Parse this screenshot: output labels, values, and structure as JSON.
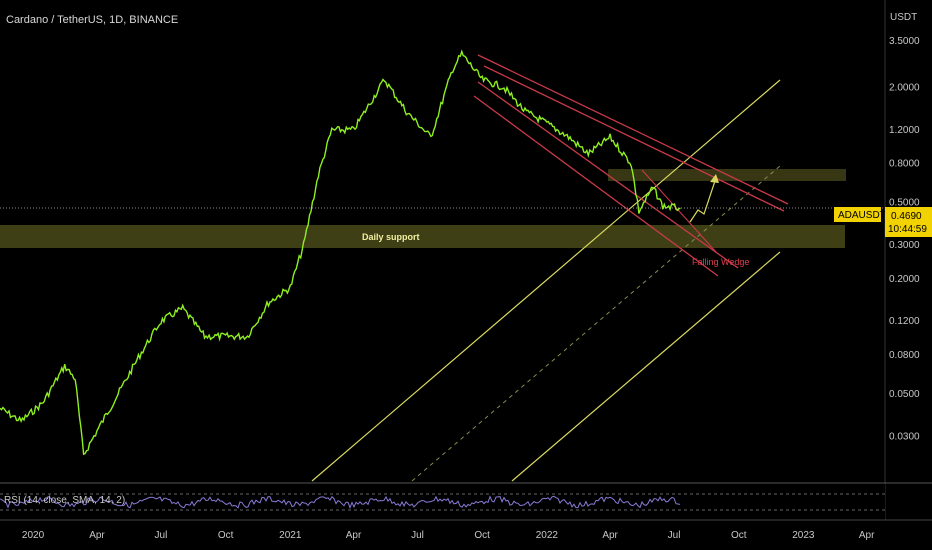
{
  "header": {
    "title": "Cardano / TetherUS, 1D, BINANCE"
  },
  "axis": {
    "unit": "USDT"
  },
  "price_tag": {
    "symbol": "ADAUSDT",
    "price": "0.4690",
    "countdown": "10:44:59"
  },
  "annotations": {
    "support": "Daily support",
    "wedge": "Falling Wedge"
  },
  "rsi": {
    "label": "RSI (14, close, SMA, 14, 2)"
  },
  "colors": {
    "candles": "#8ff020",
    "support_zone": "#4a4a1a",
    "trend_channel": "#d8d860",
    "wedge": "#c83a48",
    "rsi_line": "#8a7bd8",
    "price_tag": "#f2d200"
  },
  "chart_data": {
    "type": "line",
    "y_scale": "log",
    "ylim": [
      0.02,
      4.0
    ],
    "y_ticks": [
      "3.5000",
      "2.0000",
      "1.2000",
      "0.8000",
      "0.5000",
      "0.3000",
      "0.2000",
      "0.1200",
      "0.0800",
      "0.0500",
      "0.0300"
    ],
    "x_ticks": [
      "2020",
      "Apr",
      "Jul",
      "Oct",
      "2021",
      "Apr",
      "Jul",
      "Oct",
      "2022",
      "Apr",
      "Jul",
      "Oct",
      "2023",
      "Apr"
    ],
    "xlim": [
      "2019-11-15",
      "2023-04-20"
    ],
    "last_price": 0.469,
    "series": [
      {
        "values": [
          [
            "2019-11-15",
            0.042
          ],
          [
            "2019-12-15",
            0.036
          ],
          [
            "2020-01-15",
            0.045
          ],
          [
            "2020-02-15",
            0.07
          ],
          [
            "2020-03-01",
            0.06
          ],
          [
            "2020-03-13",
            0.024
          ],
          [
            "2020-04-01",
            0.032
          ],
          [
            "2020-05-01",
            0.05
          ],
          [
            "2020-06-01",
            0.08
          ],
          [
            "2020-07-01",
            0.12
          ],
          [
            "2020-08-01",
            0.14
          ],
          [
            "2020-09-01",
            0.1
          ],
          [
            "2020-10-01",
            0.1
          ],
          [
            "2020-11-01",
            0.1
          ],
          [
            "2020-12-01",
            0.15
          ],
          [
            "2021-01-01",
            0.18
          ],
          [
            "2021-01-20",
            0.3
          ],
          [
            "2021-02-10",
            0.7
          ],
          [
            "2021-03-01",
            1.2
          ],
          [
            "2021-04-01",
            1.2
          ],
          [
            "2021-05-15",
            2.2
          ],
          [
            "2021-06-15",
            1.5
          ],
          [
            "2021-07-20",
            1.1
          ],
          [
            "2021-08-20",
            2.5
          ],
          [
            "2021-09-02",
            3.0
          ],
          [
            "2021-10-01",
            2.2
          ],
          [
            "2021-11-01",
            2.0
          ],
          [
            "2021-12-01",
            1.5
          ],
          [
            "2022-01-01",
            1.3
          ],
          [
            "2022-02-01",
            1.1
          ],
          [
            "2022-03-01",
            0.9
          ],
          [
            "2022-04-01",
            1.1
          ],
          [
            "2022-05-01",
            0.8
          ],
          [
            "2022-05-12",
            0.45
          ],
          [
            "2022-06-01",
            0.6
          ],
          [
            "2022-06-15",
            0.48
          ],
          [
            "2022-07-10",
            0.469
          ]
        ]
      }
    ]
  }
}
